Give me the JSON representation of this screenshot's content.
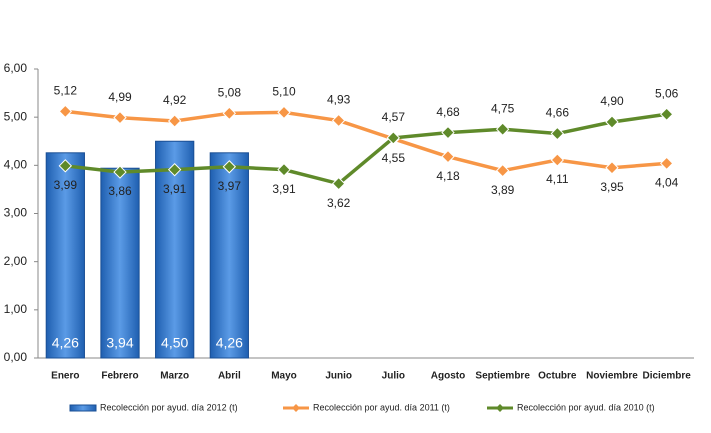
{
  "chart_data": {
    "type": "bar_line",
    "categories": [
      "Enero",
      "Febrero",
      "Marzo",
      "Abril",
      "Mayo",
      "Junio",
      "Julio",
      "Agosto",
      "Septiembre",
      "Octubre",
      "Noviembre",
      "Diciembre"
    ],
    "series": [
      {
        "name": "Recolección por ayud. día 2012 (t)",
        "type": "bar",
        "color": "#3a7fd5",
        "values": [
          4.26,
          3.94,
          4.5,
          4.26,
          null,
          null,
          null,
          null,
          null,
          null,
          null,
          null
        ],
        "value_labels": [
          "4,26",
          "3,94",
          "4,50",
          "4,26",
          null,
          null,
          null,
          null,
          null,
          null,
          null,
          null
        ]
      },
      {
        "name": "Recolección por ayud. día 2011 (t)",
        "type": "line",
        "color": "#f79646",
        "values": [
          5.12,
          4.99,
          4.92,
          5.08,
          5.1,
          4.93,
          4.55,
          4.18,
          3.89,
          4.11,
          3.95,
          4.04
        ],
        "value_labels": [
          "5,12",
          "4,99",
          "4,92",
          "5,08",
          "5,10",
          "4,93",
          "4,55",
          "4,18",
          "3,89",
          "4,11",
          "3,95",
          "4,04"
        ]
      },
      {
        "name": "Recolección por ayud. día 2010 (t)",
        "type": "line",
        "color": "#5f8a2a",
        "values": [
          3.99,
          3.86,
          3.91,
          3.97,
          3.91,
          3.62,
          4.57,
          4.68,
          4.75,
          4.66,
          4.9,
          5.06
        ],
        "value_labels": [
          "3,99",
          "3,86",
          "3,91",
          "3,97",
          "3,91",
          "3,62",
          "4,57",
          "4,68",
          "4,75",
          "4,66",
          "4,90",
          "5,06"
        ]
      }
    ],
    "ylim": [
      0,
      6
    ],
    "yticks": [
      {
        "value": 0,
        "label": "0,00"
      },
      {
        "value": 1,
        "label": "1,00"
      },
      {
        "value": 2,
        "label": "2,00"
      },
      {
        "value": 3,
        "label": "3,00"
      },
      {
        "value": 4,
        "label": "4,00"
      },
      {
        "value": 5,
        "label": "5,00"
      },
      {
        "value": 6,
        "label": "6,00"
      }
    ],
    "grid": false,
    "legend": "bottom"
  }
}
